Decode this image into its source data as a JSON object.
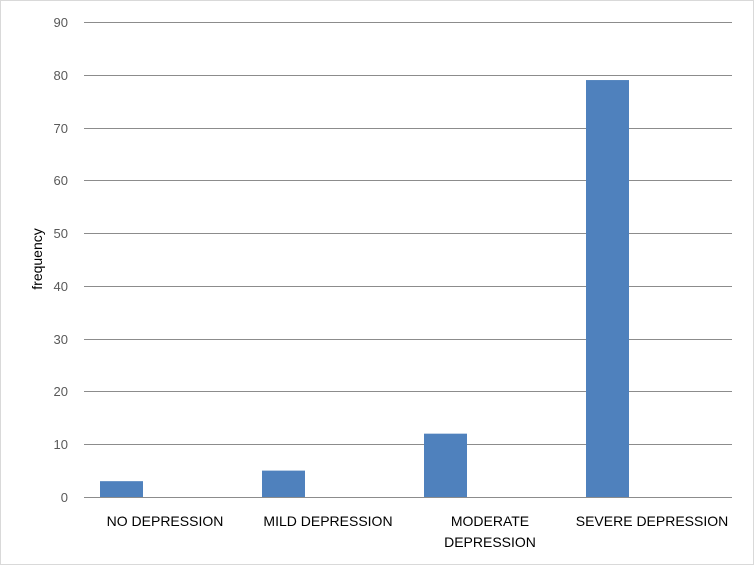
{
  "chart_data": {
    "type": "bar",
    "title": "",
    "xlabel": "",
    "ylabel": "frequency",
    "categories": [
      "NO DEPRESSION",
      "MILD DEPRESSION",
      "MODERATE DEPRESSION",
      "SEVERE DEPRESSION"
    ],
    "category_lines": [
      [
        "NO DEPRESSION"
      ],
      [
        "MILD DEPRESSION"
      ],
      [
        "MODERATE",
        "DEPRESSION"
      ],
      [
        "SEVERE DEPRESSION"
      ]
    ],
    "values": [
      3,
      5,
      12,
      79
    ],
    "ylim": [
      0,
      90
    ],
    "yticks": [
      0,
      10,
      20,
      30,
      40,
      50,
      60,
      70,
      80,
      90
    ],
    "grid": true,
    "legend": "none",
    "colors": {
      "bar": "#4f81bd",
      "grid": "#8c8c8c",
      "tick_text": "#595959",
      "border": "#d9d9d9"
    }
  }
}
